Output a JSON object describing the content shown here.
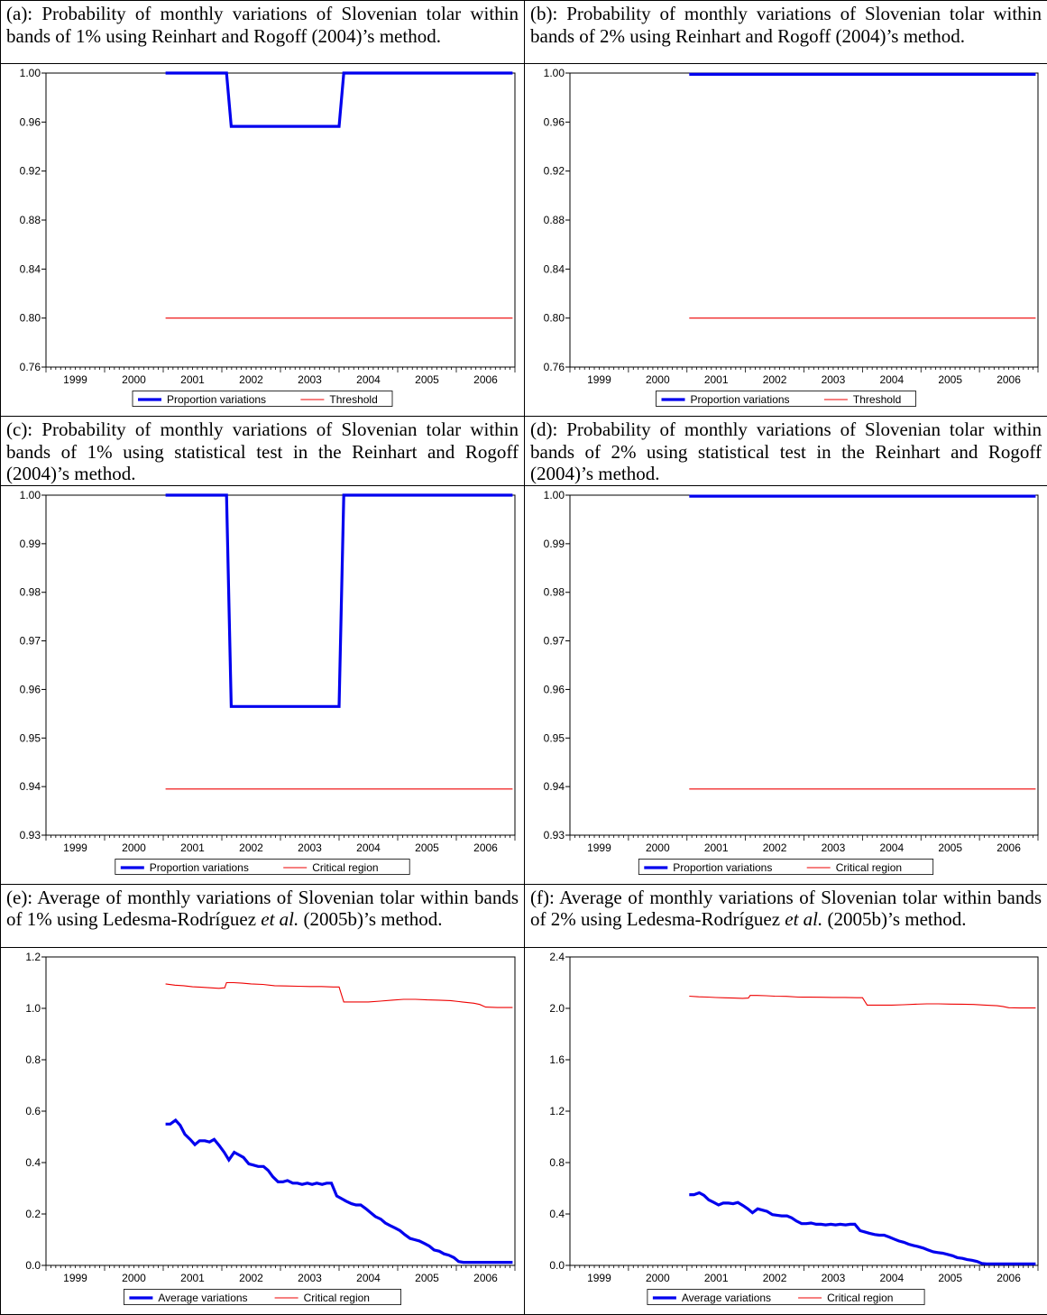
{
  "panels": [
    {
      "caption_parts": [
        {
          "t": "(a): Probability of monthly variations of Slovenian tolar within bands of 1% using Reinhart and Rogoff (2004)’s method."
        }
      ],
      "chart_data": {
        "type": "line",
        "ylim": [
          0.76,
          1.0
        ],
        "yticks": [
          "1.00",
          "0.96",
          "0.92",
          "0.88",
          "0.84",
          "0.80",
          "0.76"
        ],
        "ytick_values": [
          1.0,
          0.96,
          0.92,
          0.88,
          0.84,
          0.8,
          0.76
        ],
        "xlim": [
          1998.5,
          2006.5
        ],
        "xticks": [
          "1999",
          "2000",
          "2001",
          "2002",
          "2003",
          "2004",
          "2005",
          "2006"
        ],
        "series": [
          {
            "name": "Proportion variations",
            "color": "#0000ee",
            "width": 3.2,
            "x": [
              2000.54,
              2001.58,
              2001.66,
              2003.5,
              2003.58,
              2006.46
            ],
            "y": [
              1.0,
              1.0,
              0.9565,
              0.9565,
              1.0,
              1.0
            ]
          },
          {
            "name": "Threshold",
            "color": "#ee0000",
            "width": 1.1,
            "x": [
              2000.54,
              2006.46
            ],
            "y": [
              0.8,
              0.8
            ]
          }
        ],
        "legend": "bottom-center"
      }
    },
    {
      "caption_parts": [
        {
          "t": "(b): Probability of monthly variations of Slovenian tolar within bands of 2% using Reinhart and Rogoff (2004)’s method."
        }
      ],
      "chart_data": {
        "type": "line",
        "ylim": [
          0.76,
          1.0
        ],
        "yticks": [
          "1.00",
          "0.96",
          "0.92",
          "0.88",
          "0.84",
          "0.80",
          "0.76"
        ],
        "ytick_values": [
          1.0,
          0.96,
          0.92,
          0.88,
          0.84,
          0.8,
          0.76
        ],
        "xlim": [
          1998.5,
          2006.5
        ],
        "xticks": [
          "1999",
          "2000",
          "2001",
          "2002",
          "2003",
          "2004",
          "2005",
          "2006"
        ],
        "series": [
          {
            "name": "Proportion variations",
            "color": "#0000ee",
            "width": 3.2,
            "x": [
              2000.54,
              2006.46
            ],
            "y": [
              0.999,
              0.999
            ]
          },
          {
            "name": "Threshold",
            "color": "#ee0000",
            "width": 1.1,
            "x": [
              2000.54,
              2006.46
            ],
            "y": [
              0.8,
              0.8
            ]
          }
        ],
        "legend": "bottom-center"
      }
    },
    {
      "caption_parts": [
        {
          "t": "(c): Probability of monthly variations of Slovenian tolar within bands of 1% using statistical test in the Reinhart and Rogoff (2004)’s method."
        }
      ],
      "chart_data": {
        "type": "line",
        "ylim": [
          0.93,
          1.0
        ],
        "yticks": [
          "1.00",
          "0.99",
          "0.98",
          "0.97",
          "0.96",
          "0.95",
          "0.94",
          "0.93"
        ],
        "ytick_values": [
          1.0,
          0.99,
          0.98,
          0.97,
          0.96,
          0.95,
          0.94,
          0.93
        ],
        "xlim": [
          1998.5,
          2006.5
        ],
        "xticks": [
          "1999",
          "2000",
          "2001",
          "2002",
          "2003",
          "2004",
          "2005",
          "2006"
        ],
        "series": [
          {
            "name": "Proportion variations",
            "color": "#0000ee",
            "width": 3.2,
            "x": [
              2000.54,
              2001.58,
              2001.66,
              2003.5,
              2003.58,
              2006.46
            ],
            "y": [
              1.0,
              1.0,
              0.9565,
              0.9565,
              1.0,
              1.0
            ]
          },
          {
            "name": "Critical region",
            "color": "#ee0000",
            "width": 1.1,
            "x": [
              2000.54,
              2006.46
            ],
            "y": [
              0.9395,
              0.9395
            ]
          }
        ],
        "legend": "bottom-center"
      }
    },
    {
      "caption_parts": [
        {
          "t": "(d): Probability of monthly variations of Slovenian tolar within bands of 2% using statistical test in the Reinhart and Rogoff (2004)’s method."
        }
      ],
      "chart_data": {
        "type": "line",
        "ylim": [
          0.93,
          1.0
        ],
        "yticks": [
          "1.00",
          "0.99",
          "0.98",
          "0.97",
          "0.96",
          "0.95",
          "0.94",
          "0.93"
        ],
        "ytick_values": [
          1.0,
          0.99,
          0.98,
          0.97,
          0.96,
          0.95,
          0.94,
          0.93
        ],
        "xlim": [
          1998.5,
          2006.5
        ],
        "xticks": [
          "1999",
          "2000",
          "2001",
          "2002",
          "2003",
          "2004",
          "2005",
          "2006"
        ],
        "series": [
          {
            "name": "Proportion variations",
            "color": "#0000ee",
            "width": 3.2,
            "x": [
              2000.54,
              2006.46
            ],
            "y": [
              0.9998,
              0.9998
            ]
          },
          {
            "name": "Critical region",
            "color": "#ee0000",
            "width": 1.1,
            "x": [
              2000.54,
              2006.46
            ],
            "y": [
              0.9395,
              0.9395
            ]
          }
        ],
        "legend": "bottom-center"
      }
    },
    {
      "caption_parts": [
        {
          "t": "(e): Average of monthly variations of Slovenian tolar within bands of 1% using Ledesma-Rodríguez "
        },
        {
          "t": "et al.",
          "i": true
        },
        {
          "t": " (2005b)’s method."
        }
      ],
      "chart_data": {
        "type": "line",
        "ylim": [
          0.0,
          1.2
        ],
        "yticks": [
          "1.2",
          "1.0",
          "0.8",
          "0.6",
          "0.4",
          "0.2",
          "0.0"
        ],
        "ytick_values": [
          1.2,
          1.0,
          0.8,
          0.6,
          0.4,
          0.2,
          0.0
        ],
        "xlim": [
          1998.5,
          2006.5
        ],
        "xticks": [
          "1999",
          "2000",
          "2001",
          "2002",
          "2003",
          "2004",
          "2005",
          "2006"
        ],
        "series": [
          {
            "name": "Average variations",
            "color": "#0000ee",
            "width": 3.2,
            "x": [
              2000.54,
              2000.62,
              2000.71,
              2000.79,
              2000.87,
              2000.96,
              2001.04,
              2001.12,
              2001.21,
              2001.29,
              2001.37,
              2001.46,
              2001.54,
              2001.62,
              2001.71,
              2001.79,
              2001.87,
              2001.96,
              2002.04,
              2002.12,
              2002.21,
              2002.29,
              2002.37,
              2002.46,
              2002.54,
              2002.62,
              2002.71,
              2002.79,
              2002.87,
              2002.96,
              2003.04,
              2003.12,
              2003.21,
              2003.29,
              2003.37,
              2003.46,
              2003.54,
              2003.62,
              2003.71,
              2003.79,
              2003.87,
              2003.96,
              2004.04,
              2004.12,
              2004.21,
              2004.29,
              2004.37,
              2004.46,
              2004.54,
              2004.62,
              2004.71,
              2004.79,
              2004.87,
              2004.96,
              2005.04,
              2005.12,
              2005.21,
              2005.29,
              2005.37,
              2005.46,
              2005.54,
              2005.62,
              2005.71,
              2005.79,
              2005.87,
              2005.96,
              2006.04,
              2006.12,
              2006.21,
              2006.29,
              2006.37,
              2006.46
            ],
            "y": [
              0.55,
              0.55,
              0.565,
              0.545,
              0.51,
              0.49,
              0.47,
              0.485,
              0.485,
              0.48,
              0.49,
              0.465,
              0.44,
              0.41,
              0.44,
              0.43,
              0.42,
              0.395,
              0.39,
              0.385,
              0.385,
              0.37,
              0.345,
              0.325,
              0.325,
              0.33,
              0.32,
              0.32,
              0.315,
              0.32,
              0.315,
              0.32,
              0.315,
              0.32,
              0.32,
              0.27,
              0.26,
              0.25,
              0.24,
              0.235,
              0.235,
              0.22,
              0.205,
              0.19,
              0.18,
              0.165,
              0.155,
              0.145,
              0.135,
              0.12,
              0.105,
              0.1,
              0.095,
              0.085,
              0.075,
              0.06,
              0.055,
              0.045,
              0.04,
              0.03,
              0.015,
              0.012,
              0.012,
              0.012,
              0.012,
              0.012,
              0.012,
              0.012,
              0.012,
              0.012,
              0.012,
              0.012
            ]
          },
          {
            "name": "Critical region",
            "color": "#ee0000",
            "width": 1.1,
            "x": [
              2000.54,
              2000.7,
              2000.85,
              2001.0,
              2001.15,
              2001.3,
              2001.45,
              2001.55,
              2001.58,
              2001.7,
              2001.85,
              2002.0,
              2002.2,
              2002.4,
              2002.6,
              2002.8,
              2003.0,
              2003.2,
              2003.4,
              2003.5,
              2003.58,
              2003.8,
              2004.0,
              2004.2,
              2004.4,
              2004.6,
              2004.8,
              2005.0,
              2005.2,
              2005.4,
              2005.6,
              2005.8,
              2005.9,
              2006.0,
              2006.2,
              2006.46
            ],
            "y": [
              1.095,
              1.09,
              1.088,
              1.084,
              1.082,
              1.08,
              1.078,
              1.08,
              1.1,
              1.1,
              1.098,
              1.095,
              1.093,
              1.088,
              1.087,
              1.086,
              1.085,
              1.085,
              1.083,
              1.083,
              1.025,
              1.025,
              1.025,
              1.028,
              1.032,
              1.035,
              1.035,
              1.033,
              1.032,
              1.03,
              1.025,
              1.02,
              1.015,
              1.005,
              1.003,
              1.003
            ]
          }
        ],
        "legend": "bottom-center"
      }
    },
    {
      "caption_parts": [
        {
          "t": "(f): Average of monthly variations of Slovenian tolar within bands of 2% using Ledesma-Rodríguez "
        },
        {
          "t": "et al.",
          "i": true
        },
        {
          "t": " (2005b)’s method."
        }
      ],
      "chart_data": {
        "type": "line",
        "ylim": [
          0.0,
          2.4
        ],
        "yticks": [
          "2.4",
          "2.0",
          "1.6",
          "1.2",
          "0.8",
          "0.4",
          "0.0"
        ],
        "ytick_values": [
          2.4,
          2.0,
          1.6,
          1.2,
          0.8,
          0.4,
          0.0
        ],
        "xlim": [
          1998.5,
          2006.5
        ],
        "xticks": [
          "1999",
          "2000",
          "2001",
          "2002",
          "2003",
          "2004",
          "2005",
          "2006"
        ],
        "series": [
          {
            "name": "Average variations",
            "color": "#0000ee",
            "width": 3.2,
            "x": [
              2000.54,
              2000.62,
              2000.71,
              2000.79,
              2000.87,
              2000.96,
              2001.04,
              2001.12,
              2001.21,
              2001.29,
              2001.37,
              2001.46,
              2001.54,
              2001.62,
              2001.71,
              2001.79,
              2001.87,
              2001.96,
              2002.04,
              2002.12,
              2002.21,
              2002.29,
              2002.37,
              2002.46,
              2002.54,
              2002.62,
              2002.71,
              2002.79,
              2002.87,
              2002.96,
              2003.04,
              2003.12,
              2003.21,
              2003.29,
              2003.37,
              2003.46,
              2003.54,
              2003.62,
              2003.71,
              2003.79,
              2003.87,
              2003.96,
              2004.04,
              2004.12,
              2004.21,
              2004.29,
              2004.37,
              2004.46,
              2004.54,
              2004.62,
              2004.71,
              2004.79,
              2004.87,
              2004.96,
              2005.04,
              2005.12,
              2005.21,
              2005.29,
              2005.37,
              2005.46,
              2005.54,
              2005.62,
              2005.71,
              2005.79,
              2005.87,
              2005.96,
              2006.04,
              2006.12,
              2006.21,
              2006.29,
              2006.37,
              2006.46
            ],
            "y": [
              0.55,
              0.55,
              0.565,
              0.545,
              0.51,
              0.49,
              0.47,
              0.485,
              0.485,
              0.48,
              0.49,
              0.465,
              0.44,
              0.41,
              0.44,
              0.43,
              0.42,
              0.395,
              0.39,
              0.385,
              0.385,
              0.37,
              0.345,
              0.325,
              0.325,
              0.33,
              0.32,
              0.32,
              0.315,
              0.32,
              0.315,
              0.32,
              0.315,
              0.32,
              0.32,
              0.27,
              0.26,
              0.25,
              0.24,
              0.235,
              0.235,
              0.22,
              0.205,
              0.19,
              0.18,
              0.165,
              0.155,
              0.145,
              0.135,
              0.12,
              0.105,
              0.1,
              0.095,
              0.085,
              0.075,
              0.06,
              0.055,
              0.045,
              0.04,
              0.03,
              0.015,
              0.012,
              0.012,
              0.012,
              0.012,
              0.012,
              0.012,
              0.012,
              0.012,
              0.012,
              0.012,
              0.012
            ]
          },
          {
            "name": "Critical region",
            "color": "#ee0000",
            "width": 1.1,
            "x": [
              2000.54,
              2000.7,
              2000.85,
              2001.0,
              2001.15,
              2001.3,
              2001.45,
              2001.55,
              2001.58,
              2001.7,
              2001.85,
              2002.0,
              2002.2,
              2002.4,
              2002.6,
              2002.8,
              2003.0,
              2003.2,
              2003.4,
              2003.5,
              2003.58,
              2003.8,
              2004.0,
              2004.2,
              2004.4,
              2004.6,
              2004.8,
              2005.0,
              2005.2,
              2005.4,
              2005.6,
              2005.8,
              2005.9,
              2006.0,
              2006.2,
              2006.46
            ],
            "y": [
              2.095,
              2.09,
              2.088,
              2.084,
              2.082,
              2.08,
              2.078,
              2.08,
              2.1,
              2.1,
              2.098,
              2.095,
              2.093,
              2.088,
              2.087,
              2.086,
              2.085,
              2.085,
              2.083,
              2.083,
              2.025,
              2.025,
              2.025,
              2.028,
              2.032,
              2.035,
              2.035,
              2.033,
              2.032,
              2.03,
              2.025,
              2.02,
              2.015,
              2.005,
              2.003,
              2.003
            ]
          }
        ],
        "legend": "bottom-center"
      }
    }
  ]
}
